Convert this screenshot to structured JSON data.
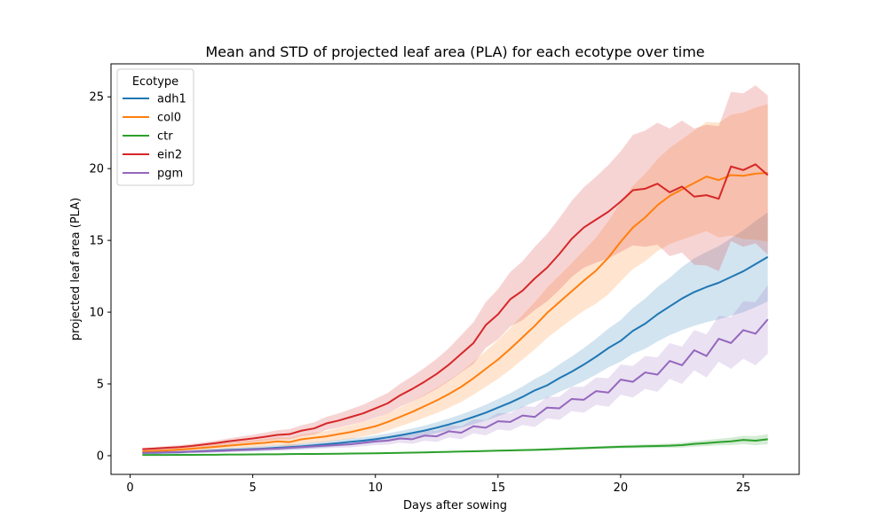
{
  "chart_data": {
    "type": "line",
    "title": "Mean and STD of projected leaf area (PLA) for each ecotype over time",
    "xlabel": "Days after sowing",
    "ylabel": "projected leaf area (PLA)",
    "xlim": [
      -0.78,
      27.28
    ],
    "ylim": [
      -1.3,
      27.3
    ],
    "xticks": [
      0,
      5,
      10,
      15,
      20,
      25
    ],
    "yticks": [
      0,
      5,
      10,
      15,
      20,
      25
    ],
    "grid": false,
    "legend": {
      "title": "Ecotype",
      "position": "top-left"
    },
    "x": [
      0.5,
      1,
      1.5,
      2,
      2.5,
      3,
      3.5,
      4,
      4.5,
      5,
      5.5,
      6,
      6.5,
      7,
      7.5,
      8,
      8.5,
      9,
      9.5,
      10,
      10.5,
      11,
      11.5,
      12,
      12.5,
      13,
      13.5,
      14,
      14.5,
      15,
      15.5,
      16,
      16.5,
      17,
      17.5,
      18,
      18.5,
      19,
      19.5,
      20,
      20.5,
      21,
      21.5,
      22,
      22.5,
      23,
      23.5,
      24,
      24.5,
      25,
      25.5,
      26
    ],
    "series": [
      {
        "name": "adh1",
        "color": "#1f77b4",
        "values": [
          0.2,
          0.2,
          0.22,
          0.24,
          0.28,
          0.32,
          0.36,
          0.4,
          0.43,
          0.46,
          0.5,
          0.55,
          0.6,
          0.65,
          0.72,
          0.8,
          0.88,
          0.97,
          1.05,
          1.15,
          1.28,
          1.42,
          1.58,
          1.75,
          1.95,
          2.18,
          2.42,
          2.7,
          3.0,
          3.35,
          3.7,
          4.1,
          4.55,
          4.9,
          5.4,
          5.85,
          6.35,
          6.9,
          7.5,
          8.0,
          8.7,
          9.2,
          9.85,
          10.4,
          10.95,
          11.4,
          11.75,
          12.05,
          12.45,
          12.85,
          13.35,
          13.85
        ],
        "std": [
          0.08,
          0.08,
          0.09,
          0.1,
          0.11,
          0.12,
          0.13,
          0.14,
          0.15,
          0.16,
          0.17,
          0.18,
          0.19,
          0.2,
          0.21,
          0.22,
          0.23,
          0.24,
          0.25,
          0.26,
          0.28,
          0.3,
          0.32,
          0.35,
          0.38,
          0.42,
          0.46,
          0.5,
          0.55,
          0.6,
          0.66,
          0.72,
          0.8,
          0.88,
          0.96,
          1.05,
          1.15,
          1.25,
          1.35,
          1.45,
          1.6,
          1.75,
          1.9,
          2.0,
          2.2,
          2.35,
          2.45,
          2.55,
          2.7,
          2.85,
          3.0,
          3.1
        ]
      },
      {
        "name": "col0",
        "color": "#ff7f0e",
        "values": [
          0.3,
          0.33,
          0.37,
          0.42,
          0.48,
          0.55,
          0.62,
          0.7,
          0.77,
          0.84,
          0.9,
          1.0,
          0.95,
          1.15,
          1.25,
          1.35,
          1.5,
          1.65,
          1.85,
          2.05,
          2.35,
          2.7,
          3.05,
          3.45,
          3.85,
          4.3,
          4.8,
          5.4,
          6.05,
          6.7,
          7.45,
          8.25,
          9.05,
          9.95,
          10.7,
          11.45,
          12.2,
          12.9,
          13.8,
          14.9,
          15.9,
          16.6,
          17.45,
          18.1,
          18.55,
          19.0,
          19.45,
          19.2,
          19.55,
          19.5,
          19.65,
          19.7
        ],
        "std": [
          0.1,
          0.11,
          0.12,
          0.13,
          0.14,
          0.16,
          0.18,
          0.2,
          0.22,
          0.24,
          0.26,
          0.28,
          0.3,
          0.32,
          0.35,
          0.38,
          0.42,
          0.46,
          0.5,
          0.55,
          0.6,
          0.66,
          0.72,
          0.8,
          0.88,
          0.96,
          1.05,
          1.15,
          1.25,
          1.35,
          1.45,
          1.55,
          1.65,
          1.75,
          1.85,
          1.95,
          2.1,
          2.3,
          2.55,
          2.75,
          2.9,
          3.05,
          3.2,
          3.35,
          3.5,
          3.65,
          3.8,
          4.0,
          4.2,
          4.4,
          4.6,
          4.8
        ]
      },
      {
        "name": "ctr",
        "color": "#2ca02c",
        "values": [
          0.05,
          0.05,
          0.05,
          0.06,
          0.06,
          0.07,
          0.07,
          0.08,
          0.08,
          0.09,
          0.1,
          0.1,
          0.11,
          0.12,
          0.12,
          0.13,
          0.14,
          0.15,
          0.16,
          0.17,
          0.18,
          0.2,
          0.21,
          0.23,
          0.25,
          0.27,
          0.29,
          0.31,
          0.33,
          0.35,
          0.37,
          0.39,
          0.41,
          0.44,
          0.47,
          0.5,
          0.53,
          0.56,
          0.59,
          0.62,
          0.64,
          0.66,
          0.68,
          0.7,
          0.74,
          0.82,
          0.88,
          0.95,
          1.0,
          1.1,
          1.05,
          1.15
        ],
        "std": [
          0.03,
          0.03,
          0.03,
          0.03,
          0.03,
          0.03,
          0.03,
          0.03,
          0.03,
          0.03,
          0.03,
          0.03,
          0.03,
          0.03,
          0.03,
          0.03,
          0.03,
          0.04,
          0.04,
          0.04,
          0.04,
          0.04,
          0.04,
          0.05,
          0.05,
          0.05,
          0.05,
          0.06,
          0.06,
          0.06,
          0.07,
          0.07,
          0.07,
          0.08,
          0.08,
          0.09,
          0.09,
          0.1,
          0.1,
          0.11,
          0.12,
          0.13,
          0.14,
          0.15,
          0.17,
          0.19,
          0.21,
          0.23,
          0.26,
          0.29,
          0.32,
          0.35
        ]
      },
      {
        "name": "ein2",
        "color": "#d62728",
        "values": [
          0.45,
          0.5,
          0.55,
          0.6,
          0.68,
          0.78,
          0.88,
          1.0,
          1.1,
          1.2,
          1.32,
          1.45,
          1.5,
          1.75,
          1.9,
          2.25,
          2.45,
          2.7,
          2.95,
          3.3,
          3.65,
          4.2,
          4.65,
          5.15,
          5.7,
          6.35,
          7.1,
          7.85,
          9.1,
          9.85,
          10.9,
          11.5,
          12.35,
          13.1,
          14.05,
          15.1,
          15.9,
          16.45,
          17.0,
          17.7,
          18.5,
          18.6,
          18.95,
          18.35,
          18.75,
          18.05,
          18.15,
          17.9,
          20.15,
          19.9,
          20.3,
          19.55
        ],
        "std": [
          0.1,
          0.11,
          0.12,
          0.13,
          0.14,
          0.16,
          0.18,
          0.2,
          0.23,
          0.26,
          0.29,
          0.32,
          0.35,
          0.38,
          0.42,
          0.46,
          0.5,
          0.55,
          0.6,
          0.66,
          0.72,
          0.8,
          0.88,
          0.96,
          1.05,
          1.15,
          1.3,
          1.45,
          1.6,
          1.75,
          1.9,
          2.05,
          2.2,
          2.35,
          2.5,
          2.65,
          2.8,
          3.0,
          3.25,
          3.5,
          3.85,
          4.05,
          4.25,
          4.45,
          4.6,
          4.75,
          4.9,
          5.05,
          5.2,
          5.35,
          5.5,
          5.55
        ]
      },
      {
        "name": "pgm",
        "color": "#9467bd",
        "values": [
          0.2,
          0.22,
          0.24,
          0.26,
          0.28,
          0.3,
          0.33,
          0.36,
          0.4,
          0.43,
          0.47,
          0.5,
          0.55,
          0.6,
          0.65,
          0.7,
          0.75,
          0.8,
          0.9,
          1.0,
          1.05,
          1.2,
          1.15,
          1.4,
          1.35,
          1.7,
          1.6,
          2.05,
          1.95,
          2.4,
          2.35,
          2.8,
          2.7,
          3.35,
          3.3,
          3.95,
          3.9,
          4.5,
          4.4,
          5.3,
          5.15,
          5.8,
          5.65,
          6.6,
          6.3,
          7.35,
          6.95,
          8.15,
          7.85,
          8.75,
          8.5,
          9.5
        ],
        "std": [
          0.06,
          0.06,
          0.07,
          0.07,
          0.08,
          0.08,
          0.09,
          0.1,
          0.11,
          0.12,
          0.13,
          0.14,
          0.15,
          0.16,
          0.17,
          0.18,
          0.2,
          0.22,
          0.24,
          0.26,
          0.28,
          0.3,
          0.33,
          0.36,
          0.39,
          0.42,
          0.45,
          0.49,
          0.53,
          0.57,
          0.61,
          0.66,
          0.7,
          0.75,
          0.8,
          0.85,
          0.9,
          0.95,
          1.0,
          1.05,
          1.1,
          1.15,
          1.2,
          1.25,
          1.3,
          1.4,
          1.5,
          1.6,
          1.8,
          2.0,
          2.2,
          2.4
        ]
      }
    ]
  }
}
